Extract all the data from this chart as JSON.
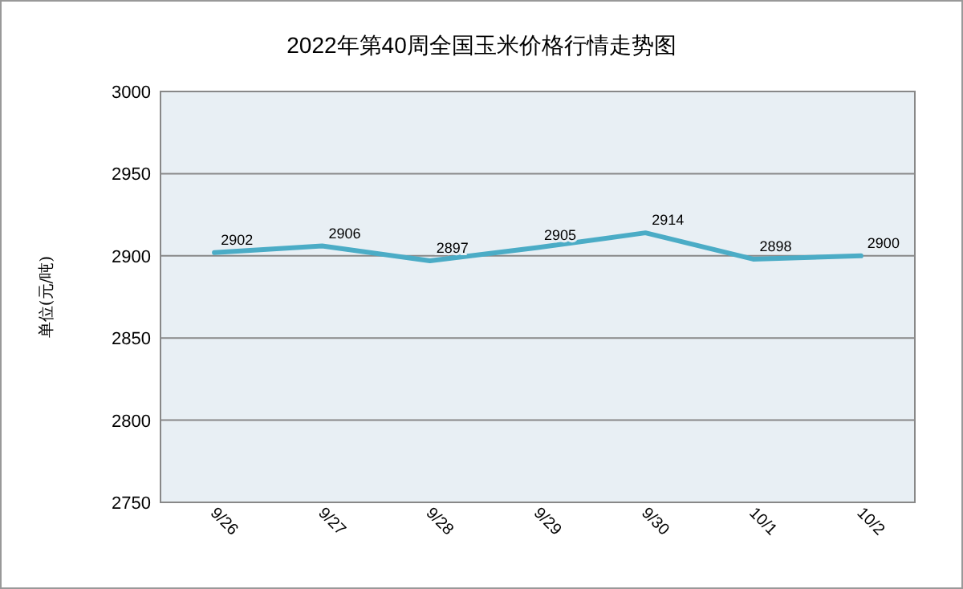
{
  "chart_data": {
    "type": "line",
    "title": "2022年第40周全国玉米价格行情走势图",
    "ylabel": "单位(元/吨)",
    "categories": [
      "9/26",
      "9/27",
      "9/28",
      "9/29",
      "9/30",
      "10/1",
      "10/2"
    ],
    "series": [
      {
        "color": "#4bacc6",
        "values": [
          2902,
          2906,
          2897,
          2905,
          2914,
          2898,
          2900
        ]
      }
    ],
    "ylim": [
      2750,
      3000
    ],
    "yticks": [
      2750,
      2800,
      2850,
      2900,
      2950,
      3000
    ],
    "grid": "y",
    "data_labels": true,
    "marker": "none",
    "line_style": "solid"
  }
}
